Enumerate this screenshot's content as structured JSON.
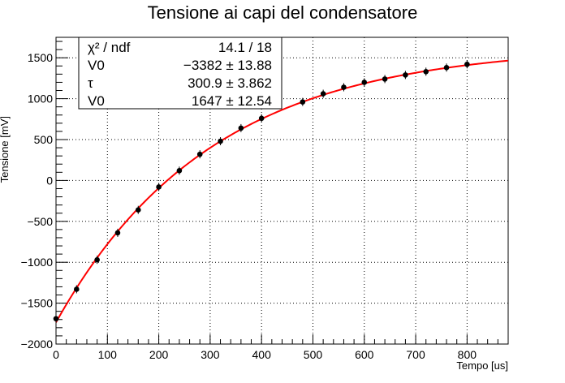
{
  "chart_data": {
    "type": "scatter",
    "title": "Tensione ai capi del condensatore",
    "xlabel": "Tempo [us]",
    "ylabel": "Tensione [mV]",
    "xlim": [
      0,
      880
    ],
    "ylim": [
      -2000,
      1750
    ],
    "xticks": [
      0,
      100,
      200,
      300,
      400,
      500,
      600,
      700,
      800
    ],
    "yticks": [
      -2000,
      -1500,
      -1000,
      -500,
      0,
      500,
      1000,
      1500
    ],
    "grid": true,
    "points": {
      "name": "",
      "color": "#000000",
      "x": [
        0,
        40,
        80,
        120,
        160,
        200,
        240,
        280,
        320,
        360,
        400,
        480,
        520,
        560,
        600,
        640,
        680,
        720,
        760,
        800
      ],
      "y": [
        -1690,
        -1330,
        -970,
        -640,
        -360,
        -80,
        120,
        320,
        480,
        640,
        760,
        960,
        1060,
        1140,
        1200,
        1240,
        1290,
        1330,
        1380,
        1420
      ]
    },
    "fit": {
      "color": "#ff0000",
      "function": "V0 + A*(1-exp(-t/tau)) with A=3382",
      "params": {
        "A": 3382,
        "tau": 300.9,
        "V0": -1735
      },
      "x_range": [
        0,
        880
      ]
    },
    "stats_box": {
      "position": "top-left",
      "rows": [
        {
          "label": "χ² / ndf",
          "value": "14.1 / 18"
        },
        {
          "label": "V0",
          "value": "−3382 ± 13.88"
        },
        {
          "label": "τ",
          "value": "300.9 ± 3.862"
        },
        {
          "label": "V0",
          "value": "1647 ± 12.54"
        }
      ]
    }
  }
}
